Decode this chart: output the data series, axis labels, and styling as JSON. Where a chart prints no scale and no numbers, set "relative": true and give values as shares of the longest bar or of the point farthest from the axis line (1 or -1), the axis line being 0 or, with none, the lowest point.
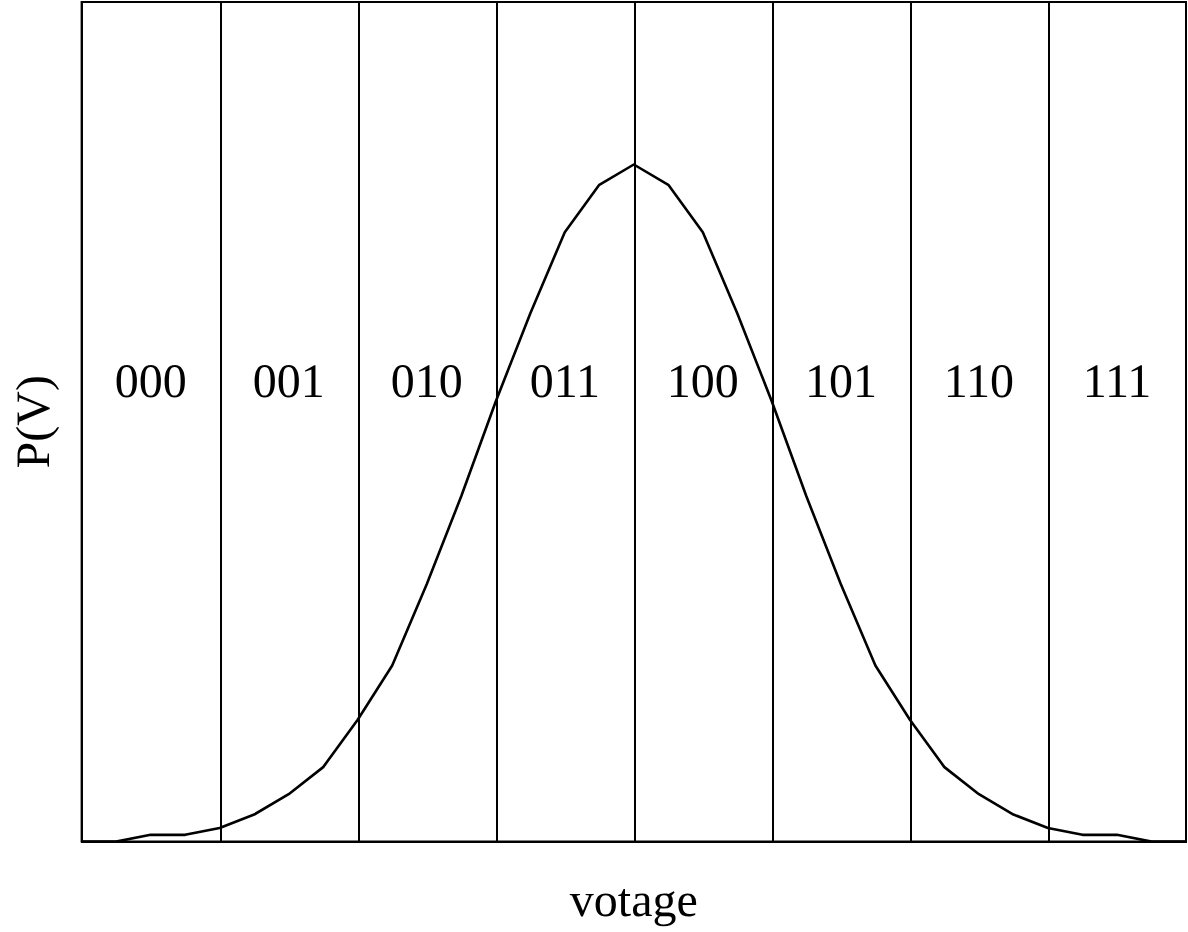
{
  "chart_data": {
    "type": "line",
    "xlabel": "votage",
    "ylabel": "P(V)",
    "relative": true,
    "marker": "none",
    "line_style": "solid",
    "legend": false,
    "categories": [
      null,
      null,
      null,
      null,
      null,
      null,
      null,
      null,
      null,
      null,
      null,
      null,
      null,
      null,
      null,
      null,
      null,
      null,
      null,
      null,
      null,
      null,
      null,
      null,
      null,
      null,
      null,
      null,
      null,
      null,
      null,
      null,
      null
    ],
    "series": [
      {
        "color": "#000000",
        "values": [
          0,
          0,
          0.01,
          0.01,
          0.02,
          0.04,
          0.07,
          0.11,
          0.18,
          0.26,
          0.38,
          0.51,
          0.65,
          0.78,
          0.9,
          0.97,
          1,
          0.97,
          0.9,
          0.78,
          0.65,
          0.51,
          0.38,
          0.26,
          0.18,
          0.11,
          0.07,
          0.04,
          0.02,
          0.01,
          0.01,
          0,
          0
        ]
      }
    ],
    "annotations": [
      "000",
      "001",
      "010",
      "011",
      "100",
      "101",
      "110",
      "111"
    ]
  }
}
